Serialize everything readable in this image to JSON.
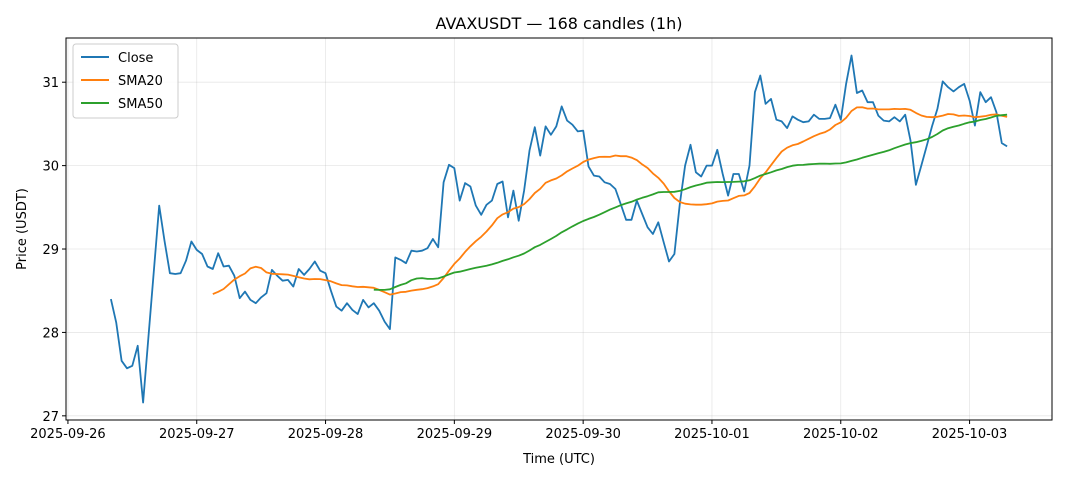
{
  "chart_data": {
    "type": "line",
    "title": "AVAXUSDT — 168 candles (1h)",
    "xlabel": "Time (UTC)",
    "ylabel": "Price (USDT)",
    "start": "2025-09-26T08:00:00Z",
    "interval_hours": 1,
    "x_ticks": [
      "2025-09-26",
      "2025-09-27",
      "2025-09-28",
      "2025-09-29",
      "2025-09-30",
      "2025-10-01",
      "2025-10-02",
      "2025-10-03"
    ],
    "y_ticks": [
      27,
      28,
      29,
      30,
      31
    ],
    "xlim_days_from_2025_09_26": [
      -0.015,
      7.64
    ],
    "ylim": [
      26.95,
      31.53
    ],
    "grid": true,
    "legend_position": "top-left",
    "sma_windows": [
      20,
      50
    ],
    "series": [
      {
        "name": "Close",
        "color": "#1f77b4",
        "values": [
          28.4,
          28.12,
          27.66,
          27.57,
          27.6,
          27.84,
          27.16,
          27.94,
          28.73,
          29.52,
          29.1,
          28.71,
          28.7,
          28.71,
          28.86,
          29.09,
          28.99,
          28.94,
          28.79,
          28.76,
          28.95,
          28.79,
          28.8,
          28.68,
          28.41,
          28.49,
          28.39,
          28.35,
          28.42,
          28.47,
          28.75,
          28.68,
          28.62,
          28.63,
          28.55,
          28.76,
          28.69,
          28.76,
          28.85,
          28.74,
          28.71,
          28.5,
          28.31,
          28.26,
          28.35,
          28.27,
          28.22,
          28.39,
          28.3,
          28.35,
          28.26,
          28.13,
          28.04,
          28.9,
          28.87,
          28.83,
          28.98,
          28.97,
          28.98,
          29.01,
          29.12,
          29.02,
          29.8,
          30.01,
          29.97,
          29.58,
          29.79,
          29.75,
          29.52,
          29.41,
          29.53,
          29.58,
          29.78,
          29.81,
          29.38,
          29.7,
          29.34,
          29.7,
          30.18,
          30.46,
          30.12,
          30.47,
          30.37,
          30.47,
          30.71,
          30.54,
          30.49,
          30.41,
          30.42,
          29.99,
          29.88,
          29.87,
          29.8,
          29.78,
          29.72,
          29.54,
          29.35,
          29.35,
          29.58,
          29.42,
          29.26,
          29.18,
          29.32,
          29.08,
          28.85,
          28.94,
          29.54,
          30.0,
          30.25,
          29.92,
          29.87,
          30.0,
          30.0,
          30.19,
          29.9,
          29.64,
          29.9,
          29.9,
          29.69,
          30.0,
          30.88,
          31.08,
          30.74,
          30.8,
          30.55,
          30.53,
          30.45,
          30.59,
          30.55,
          30.52,
          30.53,
          30.61,
          30.56,
          30.56,
          30.57,
          30.73,
          30.55,
          30.98,
          31.32,
          30.87,
          30.9,
          30.76,
          30.76,
          30.6,
          30.54,
          30.53,
          30.58,
          30.53,
          30.61,
          30.3,
          29.77,
          30.0,
          30.23,
          30.47,
          30.68,
          31.01,
          30.94,
          30.89,
          30.94,
          30.98,
          30.78,
          30.48,
          30.88,
          30.76,
          30.82,
          30.64,
          30.27,
          30.23
        ]
      },
      {
        "name": "SMA20",
        "color": "#ff7f0e",
        "window": 20
      },
      {
        "name": "SMA50",
        "color": "#2ca02c",
        "window": 50
      }
    ]
  }
}
